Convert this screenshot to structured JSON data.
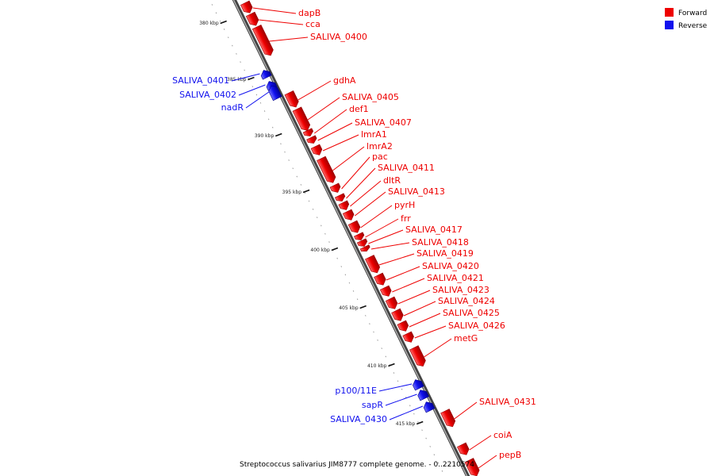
{
  "title": "Streptococcus salivarius JIM8777 complete genome. - 0..2210574",
  "legend": [
    {
      "label": "Forward",
      "color": "#ee0000"
    },
    {
      "label": "Reverse",
      "color": "#1111ee"
    }
  ],
  "axis_ticks": [
    "380 kbp",
    "385 kbp",
    "390 kbp",
    "395 kbp",
    "400 kbp",
    "405 kbp",
    "410 kbp",
    "415 kbp"
  ],
  "genes": [
    {
      "name": "dapB",
      "strand": "forward"
    },
    {
      "name": "cca",
      "strand": "forward"
    },
    {
      "name": "SALIVA_0400",
      "strand": "forward"
    },
    {
      "name": "SALIVA_0401",
      "strand": "reverse"
    },
    {
      "name": "SALIVA_0402",
      "strand": "reverse"
    },
    {
      "name": "nadR",
      "strand": "reverse"
    },
    {
      "name": "gdhA",
      "strand": "forward"
    },
    {
      "name": "SALIVA_0405",
      "strand": "forward"
    },
    {
      "name": "def1",
      "strand": "forward"
    },
    {
      "name": "SALIVA_0407",
      "strand": "forward"
    },
    {
      "name": "lmrA1",
      "strand": "forward"
    },
    {
      "name": "lmrA2",
      "strand": "forward"
    },
    {
      "name": "pac",
      "strand": "forward"
    },
    {
      "name": "SALIVA_0411",
      "strand": "forward"
    },
    {
      "name": "dltR",
      "strand": "forward"
    },
    {
      "name": "SALIVA_0413",
      "strand": "forward"
    },
    {
      "name": "pyrH",
      "strand": "forward"
    },
    {
      "name": "frr",
      "strand": "forward"
    },
    {
      "name": "SALIVA_0417",
      "strand": "forward"
    },
    {
      "name": "SALIVA_0418",
      "strand": "forward"
    },
    {
      "name": "SALIVA_0419",
      "strand": "forward"
    },
    {
      "name": "SALIVA_0420",
      "strand": "forward"
    },
    {
      "name": "SALIVA_0421",
      "strand": "forward"
    },
    {
      "name": "SALIVA_0423",
      "strand": "forward"
    },
    {
      "name": "SALIVA_0424",
      "strand": "forward"
    },
    {
      "name": "SALIVA_0425",
      "strand": "forward"
    },
    {
      "name": "SALIVA_0426",
      "strand": "forward"
    },
    {
      "name": "metG",
      "strand": "forward"
    },
    {
      "name": "p100/11E",
      "strand": "reverse"
    },
    {
      "name": "sapR",
      "strand": "reverse"
    },
    {
      "name": "SALIVA_0430",
      "strand": "reverse"
    },
    {
      "name": "SALIVA_0431",
      "strand": "forward"
    },
    {
      "name": "coiA",
      "strand": "forward"
    },
    {
      "name": "pepB",
      "strand": "forward"
    }
  ]
}
